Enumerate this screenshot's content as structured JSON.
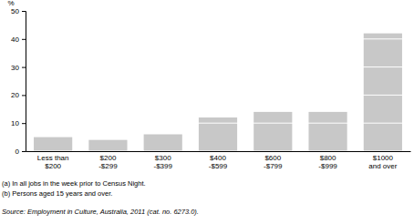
{
  "chart_data": {
    "type": "bar",
    "ylabel": "%",
    "categories": [
      "Less than\n$200",
      "$200\n-$299",
      "$300\n-$399",
      "$400\n-$599",
      "$600\n-$799",
      "$800\n-$999",
      "$1000\nand over"
    ],
    "values": [
      5,
      4,
      6,
      12,
      14,
      14,
      42
    ],
    "color": "#c8c8c8",
    "ylim": [
      0,
      50
    ],
    "yticks": [
      0,
      10,
      20,
      30,
      40,
      50
    ],
    "grid": true,
    "annotations": [
      "(a) In all jobs in the week prior to Census Night.",
      "(b) Persons aged 15 years and over.",
      "Source: Employment in Culture, Australia, 2011 (cat. no. 6273.0)."
    ]
  }
}
